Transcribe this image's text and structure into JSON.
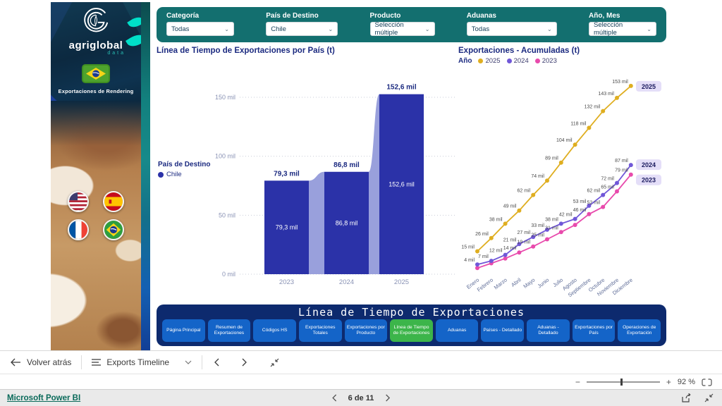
{
  "sidebar": {
    "brand": "agriglobal",
    "brand_sub": "data",
    "caption": "Exportaciones de Rendering",
    "flags": [
      "usa",
      "spain",
      "france",
      "brazil"
    ]
  },
  "filters": {
    "items": [
      {
        "label": "Categoría",
        "value": "Todas"
      },
      {
        "label": "País de Destino",
        "value": "Chile"
      },
      {
        "label": "Producto",
        "value": "Selección múltiple"
      },
      {
        "label": "Aduanas",
        "value": "Todas"
      },
      {
        "label": "Año, Mes",
        "value": "Selección múltiple"
      }
    ]
  },
  "chart_data": [
    {
      "type": "bar",
      "title": "Línea de Tiempo de Exportaciones por País (t)",
      "legend_title": "País de Destino",
      "categories": [
        "2023",
        "2024",
        "2025"
      ],
      "series": [
        {
          "name": "Chile",
          "values": [
            79300,
            86800,
            152600
          ]
        }
      ],
      "value_labels": [
        "79,3 mil",
        "86,8 mil",
        "152,6 mil"
      ],
      "y_ticks": [
        0,
        50000,
        100000,
        150000
      ],
      "y_tick_labels": [
        "0 mil",
        "50 mil",
        "100 mil",
        "150 mil"
      ],
      "ylim": [
        0,
        160000
      ],
      "grid": "dotted",
      "bar_color": "#2b32a8",
      "ribbon_color": "#99a0dc",
      "label_color": "#1b2a80"
    },
    {
      "type": "line",
      "title": "Exportaciones - Acumuladas (t)",
      "legend_title": "Año",
      "unit": "mil",
      "categories": [
        "Enero",
        "Febrero",
        "Marzo",
        "Abril",
        "Mayo",
        "Junio",
        "Julio",
        "Agosto",
        "Septiembre",
        "Octubre",
        "Noviembre",
        "Diciembre"
      ],
      "series": [
        {
          "name": "2023",
          "color": "#e84aac",
          "values": [
            1,
            5,
            9,
            14,
            19,
            25,
            31,
            37,
            46,
            52,
            65,
            79
          ]
        },
        {
          "name": "2024",
          "color": "#7057d8",
          "values": [
            4,
            7,
            12,
            21,
            27,
            33,
            38,
            42,
            53,
            62,
            72,
            87
          ]
        },
        {
          "name": "2025",
          "color": "#dfae20",
          "values": [
            15,
            26,
            38,
            49,
            62,
            74,
            89,
            104,
            118,
            132,
            143,
            153
          ]
        }
      ],
      "end_badges": [
        "2025",
        "2024",
        "2023"
      ],
      "badge_bg": "#e4def8",
      "badge_text_color": "#1a1a5e",
      "ylim": [
        0,
        160
      ],
      "legend_position": "top"
    }
  ],
  "nav": {
    "title": "Línea de Tiempo de Exportaciones",
    "active_index": 5,
    "buttons": [
      "Página Principal",
      "Resumen de Exportaciones",
      "Códigos HS",
      "Exportaciones Totales",
      "Exportaciones por Producto",
      "Línea de Tiempo de Exportaciones",
      "Aduanas",
      "Países - Detallado",
      "Aduanas - Detallado",
      "Exportaciones por País",
      "Operaciones de Exportación"
    ]
  },
  "toolbar": {
    "back_label": "Volver atrás",
    "report_label": "Exports Timeline"
  },
  "zoom": {
    "percent": "92 %"
  },
  "statusbar": {
    "brand_link": "Microsoft Power BI",
    "page_label": "6 de 11"
  }
}
